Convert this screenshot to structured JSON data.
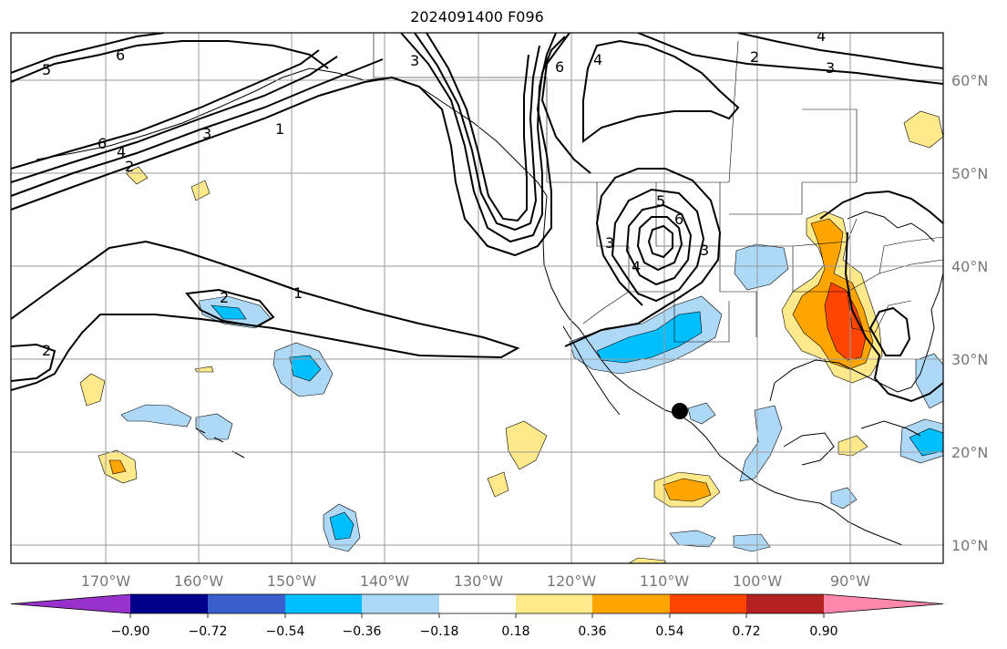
{
  "title": "2024091400 F096",
  "lat_labels": [
    "60°N",
    "50°N",
    "40°N",
    "30°N",
    "20°N",
    "10°N"
  ],
  "lon_labels": [
    "170°W",
    "160°W",
    "150°W",
    "140°W",
    "130°W",
    "120°W",
    "110°W",
    "100°W",
    "90°W"
  ],
  "contour_labels": [
    "5",
    "6",
    "6",
    "4",
    "3",
    "2",
    "1",
    "2",
    "1",
    "2",
    "3",
    "6",
    "4",
    "2",
    "3",
    "5",
    "6",
    "3",
    "4",
    "3",
    "4"
  ],
  "colorbar": {
    "tick_labels": [
      "−0.90",
      "−0.72",
      "−0.54",
      "−0.36",
      "−0.18",
      "0.18",
      "0.36",
      "0.54",
      "0.72",
      "0.90"
    ],
    "colors": [
      "#9932cc",
      "#00008b",
      "#3a5fcd",
      "#00bfff",
      "#add8f6",
      "#ffffff",
      "#ffe98a",
      "#ffa500",
      "#ff4500",
      "#b22222",
      "#ff88aa"
    ]
  },
  "marker": "storm-center-dot"
}
